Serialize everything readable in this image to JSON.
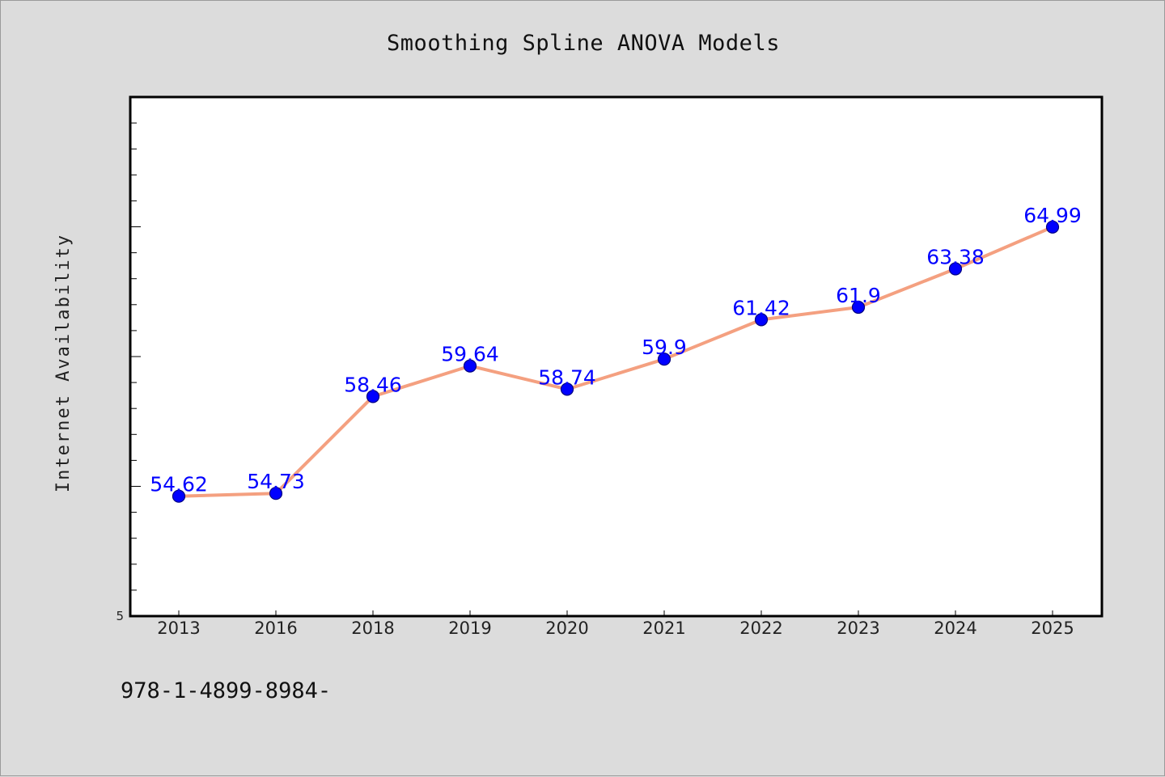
{
  "chart_data": {
    "type": "line",
    "title": "Smoothing Spline ANOVA Models",
    "xlabel": "",
    "ylabel": "Internet Availability",
    "categories": [
      "2013",
      "2016",
      "2018",
      "2019",
      "2020",
      "2021",
      "2022",
      "2023",
      "2024",
      "2025"
    ],
    "series": [
      {
        "values": [
          54.62,
          54.73,
          58.46,
          59.64,
          58.74,
          59.9,
          61.42,
          61.9,
          63.38,
          64.99
        ]
      }
    ],
    "data_labels": [
      "54.62",
      "54.73",
      "58.46",
      "59.64",
      "58.74",
      "59.9",
      "61.42",
      "61.9",
      "63.38",
      "64.99"
    ],
    "ylim": [
      50,
      70
    ],
    "ytick_labels": [
      "5"
    ],
    "grid": false,
    "legend": "none",
    "colors": {
      "line": "#f4a080",
      "marker": "#0000ff",
      "marker_edge": "#000080",
      "data_label": "#0000ff",
      "background": "#dcdcdc",
      "plot_area": "#ffffff"
    }
  },
  "footer": {
    "text": "978-1-4899-8984-"
  }
}
